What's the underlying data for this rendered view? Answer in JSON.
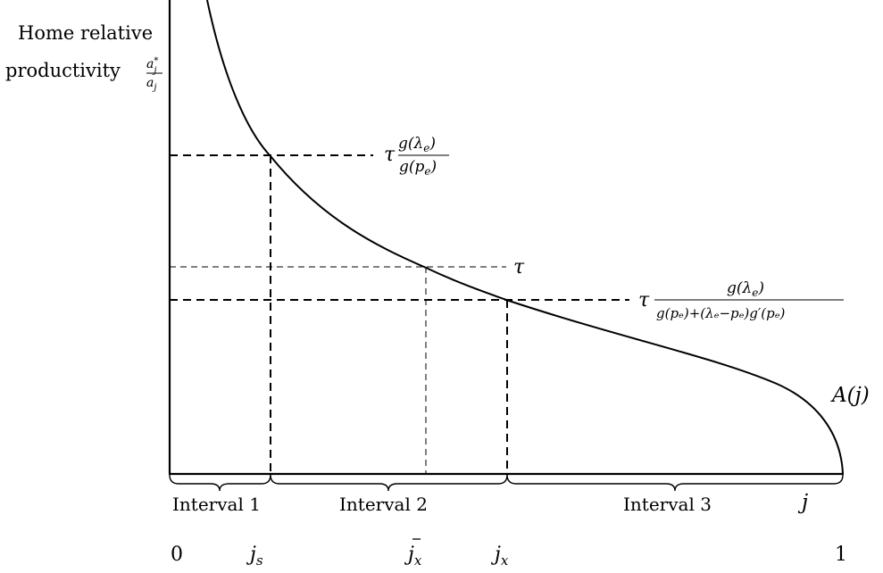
{
  "y_axis_label": {
    "line1": "Home relative",
    "line2": "productivity",
    "ratio_num_base": "a",
    "ratio_num_sup": "*",
    "ratio_num_sub": "j",
    "ratio_den_base": "a",
    "ratio_den_sub": "j"
  },
  "curve_label": "A(j)",
  "x_axis_variable": "j",
  "thresholds": {
    "upper": {
      "tau": "τ",
      "numerator": "g(λ",
      "numerator_sub": "e",
      "numerator_close": ")",
      "denominator": "g(p",
      "denominator_sub": "e",
      "denominator_close": ")"
    },
    "middle": {
      "tau": "τ"
    },
    "lower": {
      "tau": "τ",
      "numerator": "g(λ",
      "numerator_sub": "e",
      "numerator_close": ")",
      "denominator_text": "g(pₑ)+(λₑ−pₑ)g′(pₑ)"
    }
  },
  "intervals": [
    "Interval 1",
    "Interval 2",
    "Interval 3"
  ],
  "x_ticks": {
    "zero": "0",
    "js_base": "j",
    "js_sub": "s",
    "jbar_base": "j",
    "jbar_sub": "x",
    "jx_base": "j",
    "jx_sub": "x",
    "one": "1"
  }
}
